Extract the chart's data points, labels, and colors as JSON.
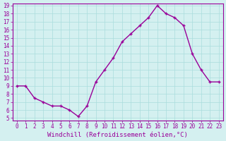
{
  "hours": [
    0,
    1,
    2,
    3,
    4,
    5,
    6,
    7,
    8,
    9,
    10,
    11,
    12,
    13,
    14,
    15,
    16,
    17,
    18,
    19,
    20,
    21,
    22,
    23
  ],
  "values": [
    9,
    9,
    7.5,
    7,
    6.5,
    6.5,
    6,
    5.2,
    6.5,
    9.5,
    11,
    12.5,
    14.5,
    15.5,
    16.5,
    17.5,
    19,
    18,
    17.5,
    16.5,
    13,
    11,
    9.5,
    9.5
  ],
  "line_color": "#990099",
  "marker": "P",
  "bg_color": "#d4f0f0",
  "grid_color": "#aadddd",
  "xlabel": "Windchill (Refroidissement éolien,°C)",
  "ylabel": "",
  "title": "",
  "xlim_min": -0.5,
  "xlim_max": 23.5,
  "ylim_min": 4.7,
  "ylim_max": 19.3,
  "yticks": [
    5,
    6,
    7,
    8,
    9,
    10,
    11,
    12,
    13,
    14,
    15,
    16,
    17,
    18,
    19
  ],
  "xticks": [
    0,
    1,
    2,
    3,
    4,
    5,
    6,
    7,
    8,
    9,
    10,
    11,
    12,
    13,
    14,
    15,
    16,
    17,
    18,
    19,
    20,
    21,
    22,
    23
  ],
  "tick_fontsize": 5.5,
  "xlabel_fontsize": 6.5,
  "marker_size": 3,
  "line_width": 1.0
}
